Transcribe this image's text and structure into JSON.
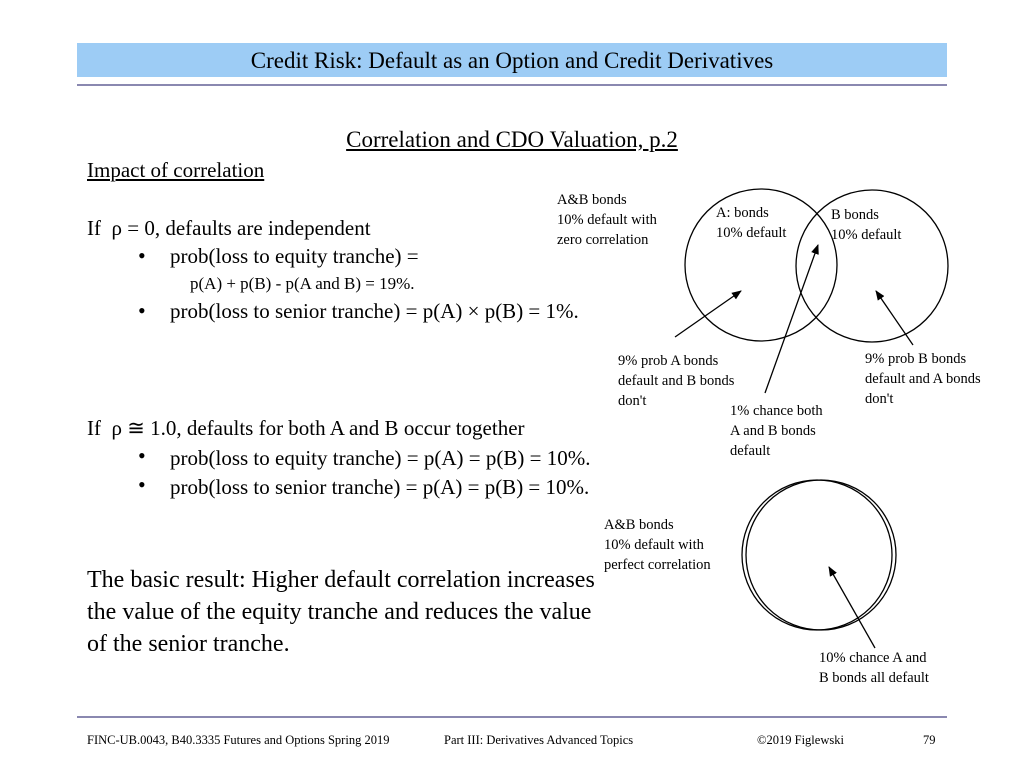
{
  "header": {
    "title": "Credit Risk: Default as an Option and Credit Derivatives"
  },
  "slide": {
    "title": "Correlation and CDO Valuation, p.2",
    "section_heading": "Impact of correlation",
    "zero_corr": {
      "rho_symbol": "ρ",
      "line_pre": "If",
      "line_post": "= 0, defaults are independent",
      "bullet1": "prob(loss to equity tranche) =",
      "bullet1_detail": "p(A) + p(B) - p(A and B) = 19%.",
      "bullet2": "prob(loss to senior tranche) = p(A) × p(B) = 1%."
    },
    "perfect_corr": {
      "rho_symbol": "ρ",
      "line_pre": "If",
      "approx_symbol": "≅",
      "line_post": "1.0, defaults for both A and B occur together",
      "bullet1": "prob(loss to equity tranche) = p(A) = p(B) = 10%.",
      "bullet2": "prob(loss to senior tranche) = p(A) = p(B) = 10%."
    },
    "result": {
      "line1": "The basic result:  Higher default correlation increases",
      "line2": "the value of the equity tranche and reduces the value",
      "line3": "of the senior tranche."
    },
    "bullet_glyph": "•"
  },
  "diagram_zero": {
    "label_ab": "A&B bonds\n10% default with\nzero correlation",
    "label_a": "A: bonds\n10% default",
    "label_b": "B bonds\n10% default",
    "note_a_only": "9% prob A bonds\ndefault and B bonds\ndon't",
    "note_both": "1% chance both\nA and B bonds\ndefault",
    "note_b_only": "9% prob B bonds\ndefault and A bonds\ndon't"
  },
  "diagram_perfect": {
    "label_ab": "A&B bonds\n10% default with\nperfect correlation",
    "note_all": "10% chance A and\nB bonds all default"
  },
  "footer": {
    "course": "FINC-UB.0043, B40.3335  Futures and Options  Spring 2019",
    "part": "Part III: Derivatives Advanced Topics",
    "copyright": "©2019 Figlewski",
    "page": "79"
  }
}
